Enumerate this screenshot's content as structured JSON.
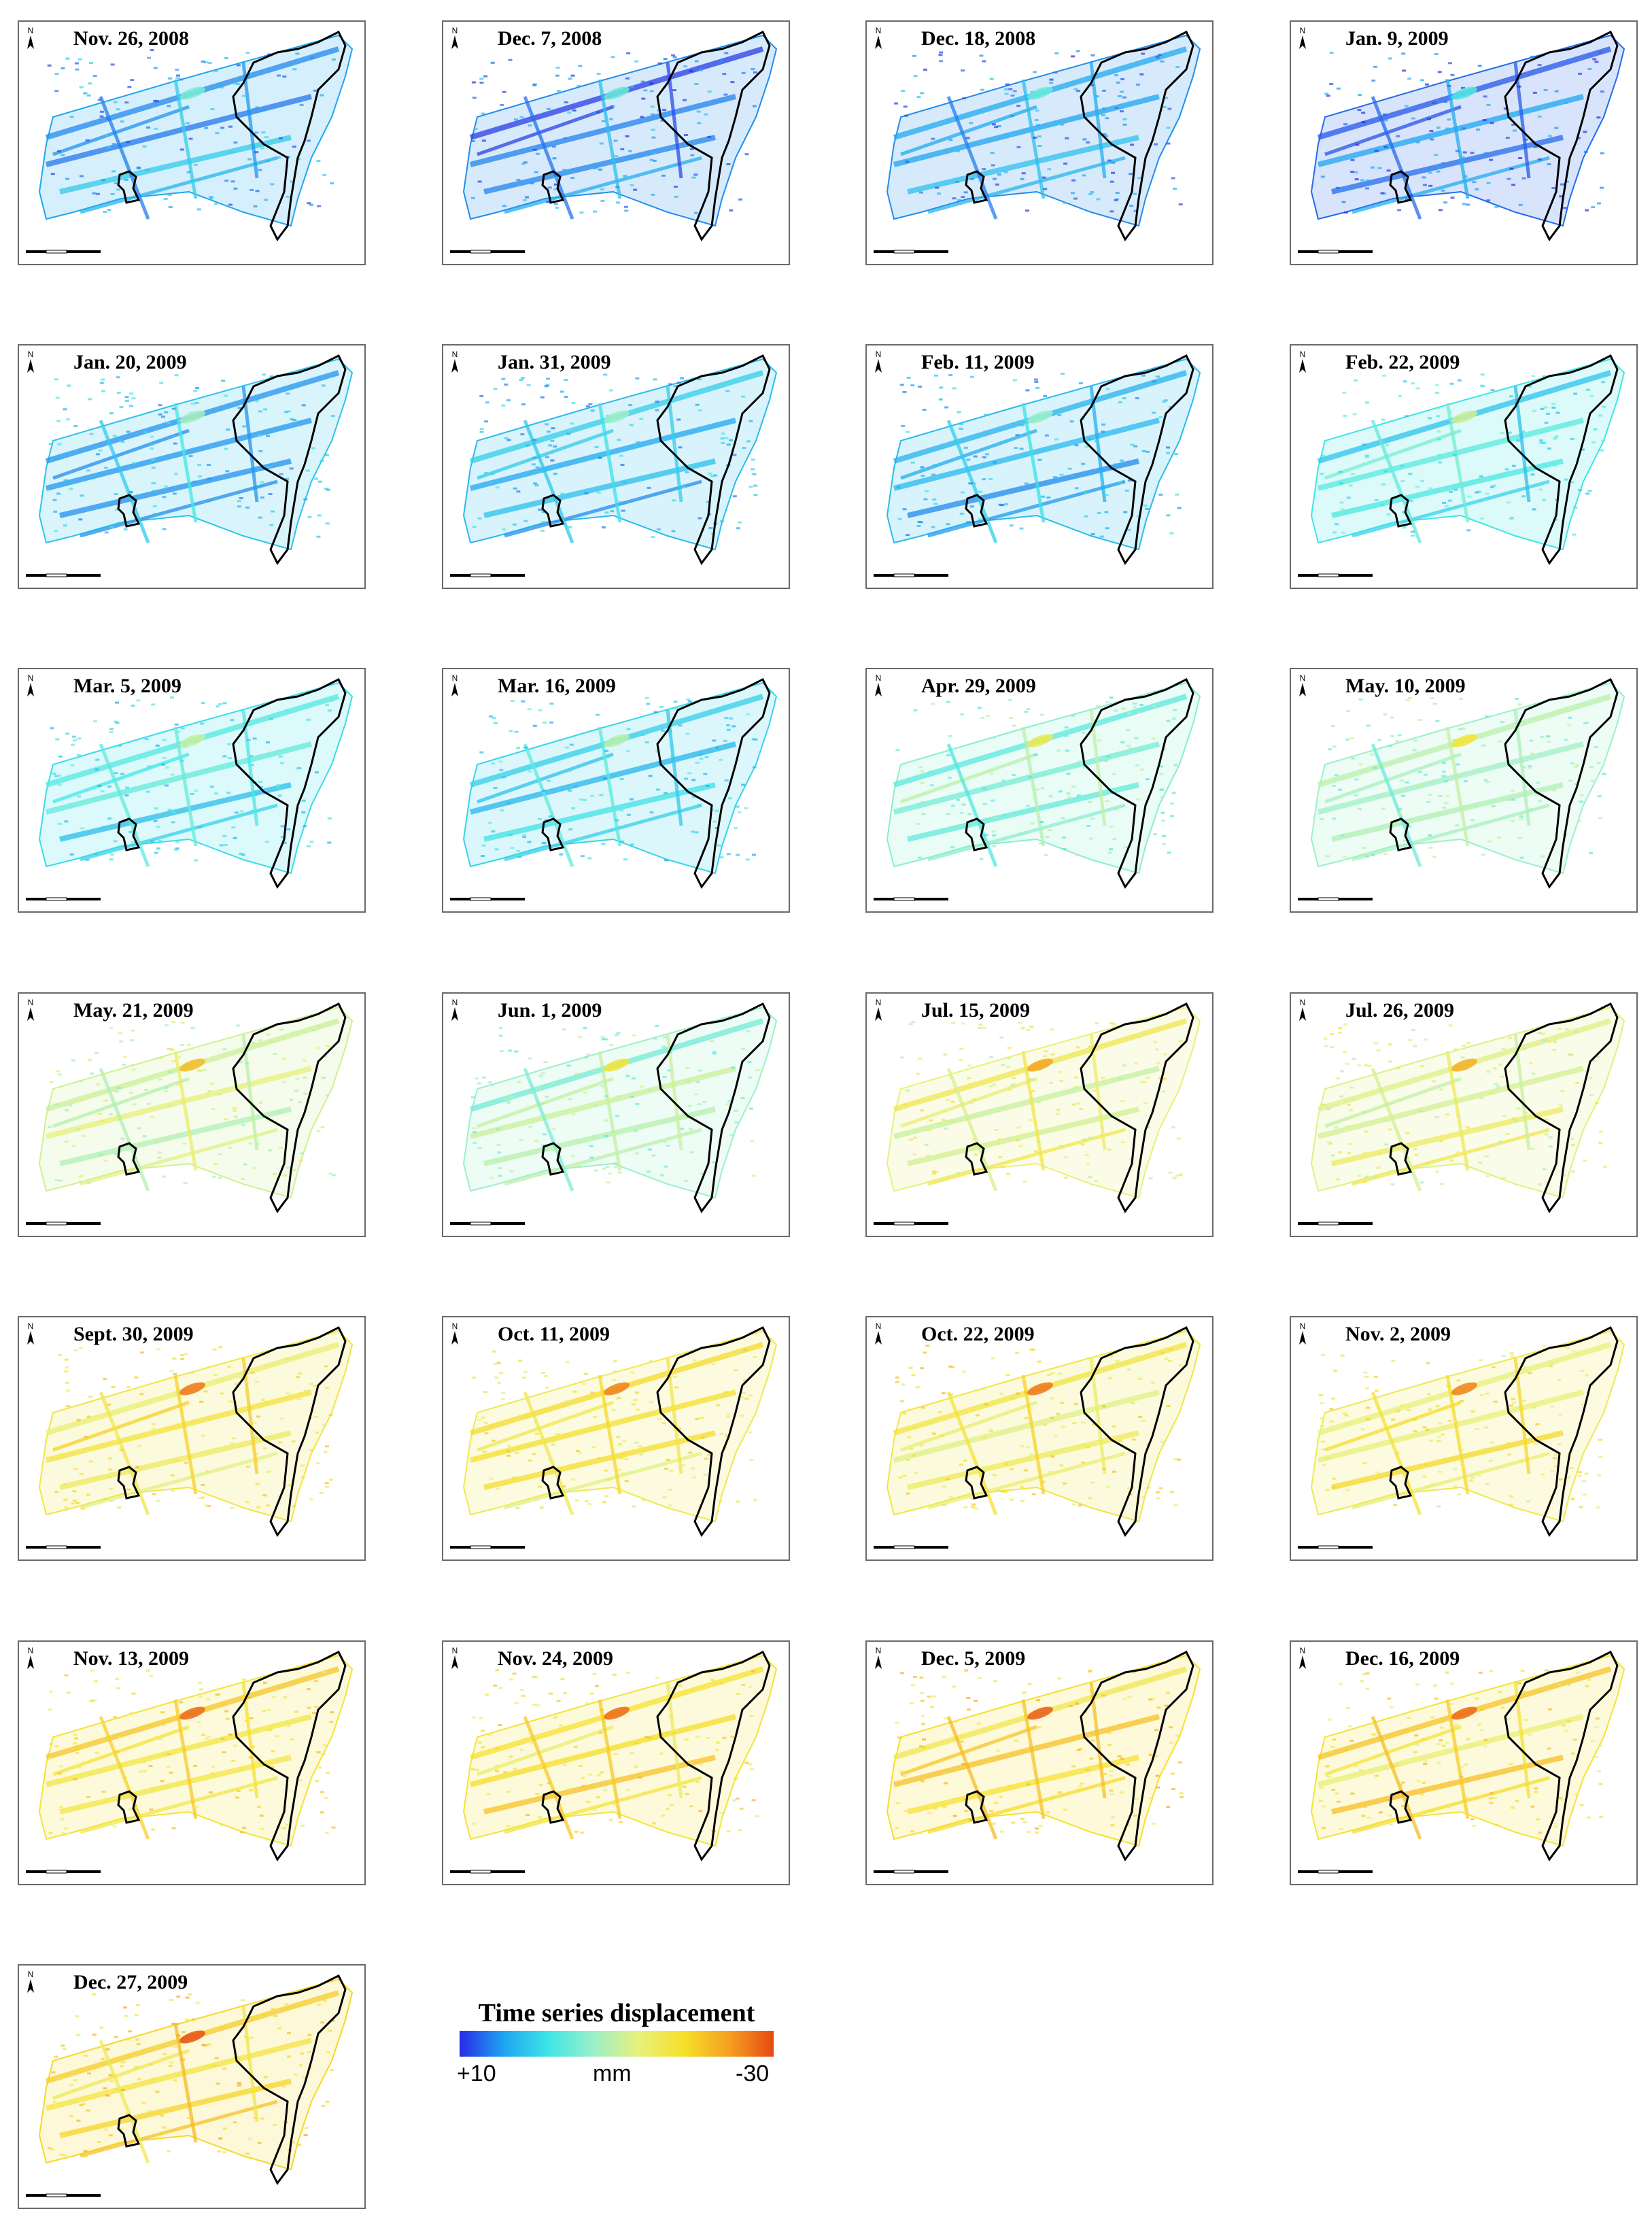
{
  "panels": [
    {
      "date": "Nov. 26, 2008",
      "level": 0.15
    },
    {
      "date": "Dec. 7, 2008",
      "level": 0.12
    },
    {
      "date": "Dec. 18, 2008",
      "level": 0.12
    },
    {
      "date": "Jan.  9, 2009",
      "level": 0.08
    },
    {
      "date": "Jan.  20, 2009",
      "level": 0.22
    },
    {
      "date": "Jan.  31, 2009",
      "level": 0.2
    },
    {
      "date": "Feb. 11, 2009",
      "level": 0.2
    },
    {
      "date": "Feb. 22, 2009",
      "level": 0.3
    },
    {
      "date": "Mar. 5, 2009",
      "level": 0.28
    },
    {
      "date": "Mar. 16, 2009",
      "level": 0.26
    },
    {
      "date": "Apr. 29, 2009",
      "level": 0.42
    },
    {
      "date": "May. 10, 2009",
      "level": 0.45
    },
    {
      "date": "May. 21, 2009",
      "level": 0.55
    },
    {
      "date": "Jun. 1, 2009",
      "level": 0.45
    },
    {
      "date": "Jul. 15, 2009",
      "level": 0.6
    },
    {
      "date": "Jul. 26, 2009",
      "level": 0.58
    },
    {
      "date": "Sept. 30, 2009",
      "level": 0.68
    },
    {
      "date": "Oct. 11, 2009",
      "level": 0.66
    },
    {
      "date": "Oct. 22, 2009",
      "level": 0.68
    },
    {
      "date": "Nov. 2, 2009",
      "level": 0.66
    },
    {
      "date": "Nov. 13, 2009",
      "level": 0.7
    },
    {
      "date": "Nov. 24, 2009",
      "level": 0.7
    },
    {
      "date": "Dec. 5, 2009",
      "level": 0.72
    },
    {
      "date": "Dec. 16, 2009",
      "level": 0.7
    },
    {
      "date": "Dec. 27, 2009",
      "level": 0.74
    }
  ],
  "north_label": "N",
  "legend": {
    "title": "Time series displacement",
    "min_label": "+10",
    "unit": "mm",
    "max_label": "-30",
    "colors": [
      "#2a2ae6",
      "#1ea6f0",
      "#3fe6e6",
      "#9cf0c8",
      "#e8f07a",
      "#f6e02a",
      "#f4a020",
      "#e84a12"
    ]
  },
  "colors": {
    "outline": "#000000",
    "frame": "#6a6a6a"
  }
}
